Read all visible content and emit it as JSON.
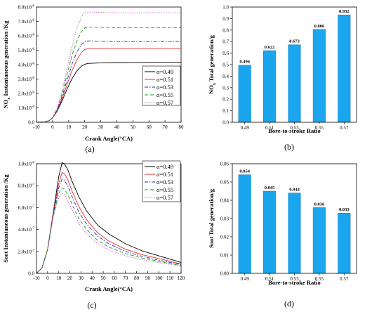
{
  "chart_data": [
    {
      "id": "a",
      "type": "line",
      "panel_label": "(a)",
      "xlabel": "Crank Angle(°CA)",
      "ylabel_main": "NO",
      "ylabel_sub": "x",
      "ylabel_rest": " Instantaneous generation /Kg",
      "xlim": [
        -10,
        80
      ],
      "ylim": [
        0,
        8e-06
      ],
      "xticks": [
        -10,
        0,
        10,
        20,
        30,
        40,
        50,
        60,
        70,
        80
      ],
      "xtick_labels": [
        "-10",
        "0",
        "10",
        "20",
        "30",
        "40",
        "50",
        "60",
        "70",
        "80"
      ],
      "yticks": [
        0,
        1e-06,
        2e-06,
        3e-06,
        4e-06,
        5e-06,
        6e-06,
        7e-06,
        8e-06
      ],
      "ytick_mantissa": [
        "0.0",
        "1.0x10",
        "2.0x10",
        "3.0x10",
        "4.0x10",
        "5.0x10",
        "6.0x10",
        "7.0x10",
        "8.0x10"
      ],
      "ytick_exp": [
        "",
        "-6",
        "-6",
        "-6",
        "-6",
        "-6",
        "-6",
        "-6",
        "-6"
      ],
      "legend_position": "right-middle",
      "series": [
        {
          "name": "α=0.49",
          "color": "#000000",
          "dash": "",
          "x": [
            -10,
            -5,
            -2,
            0,
            3,
            6,
            9,
            12,
            15,
            18,
            20,
            22,
            25,
            30,
            40,
            50,
            60,
            70,
            80
          ],
          "y": [
            0,
            2e-08,
            1.2e-07,
            3e-07,
            8e-07,
            1.5e-06,
            2.3e-06,
            3e-06,
            3.55e-06,
            3.9e-06,
            4.02e-06,
            4.08e-06,
            4.1e-06,
            4.12e-06,
            4.14e-06,
            4.15e-06,
            4.16e-06,
            4.16e-06,
            4.17e-06
          ]
        },
        {
          "name": "α=0.51",
          "color": "#e6302f",
          "dash": "",
          "x": [
            -10,
            -5,
            -2,
            0,
            3,
            6,
            9,
            12,
            15,
            18,
            20,
            22,
            25,
            30,
            40,
            50,
            60,
            70,
            80
          ],
          "y": [
            0,
            2e-08,
            1.2e-07,
            3e-07,
            8.5e-07,
            1.65e-06,
            2.6e-06,
            3.55e-06,
            4.3e-06,
            4.85e-06,
            5.05e-06,
            5.1e-06,
            5.12e-06,
            5.12e-06,
            5.12e-06,
            5.12e-06,
            5.12e-06,
            5.12e-06,
            5.12e-06
          ]
        },
        {
          "name": "α=0.53",
          "color": "#2323b4",
          "dash": "5,2,1.5,2",
          "x": [
            -10,
            -5,
            -2,
            0,
            3,
            6,
            9,
            12,
            15,
            18,
            20,
            22,
            25,
            30,
            40,
            50,
            60,
            70,
            80
          ],
          "y": [
            0,
            2e-08,
            1.2e-07,
            3e-07,
            9e-07,
            1.8e-06,
            2.9e-06,
            4e-06,
            4.85e-06,
            5.4e-06,
            5.6e-06,
            5.65e-06,
            5.65e-06,
            5.62e-06,
            5.6e-06,
            5.6e-06,
            5.6e-06,
            5.6e-06,
            5.6e-06
          ]
        },
        {
          "name": "α=0.55",
          "color": "#15a315",
          "dash": "5,3",
          "x": [
            -10,
            -5,
            -2,
            0,
            3,
            6,
            9,
            12,
            15,
            18,
            20,
            22,
            25,
            30,
            40,
            50,
            60,
            70,
            80
          ],
          "y": [
            0,
            2e-08,
            1.2e-07,
            3.2e-07,
            9.5e-07,
            2e-06,
            3.3e-06,
            4.6e-06,
            5.6e-06,
            6.3e-06,
            6.55e-06,
            6.6e-06,
            6.6e-06,
            6.58e-06,
            6.57e-06,
            6.57e-06,
            6.57e-06,
            6.57e-06,
            6.57e-06
          ]
        },
        {
          "name": "α=0.57",
          "color": "#c03bc0",
          "dash": "1.2,2",
          "x": [
            -10,
            -5,
            -2,
            0,
            3,
            6,
            9,
            12,
            15,
            18,
            20,
            22,
            25,
            30,
            40,
            50,
            60,
            70,
            80
          ],
          "y": [
            0,
            2e-08,
            1.2e-07,
            3.3e-07,
            1e-06,
            2.2e-06,
            3.7e-06,
            5.2e-06,
            6.5e-06,
            7.3e-06,
            7.6e-06,
            7.65e-06,
            7.65e-06,
            7.62e-06,
            7.6e-06,
            7.6e-06,
            7.6e-06,
            7.6e-06,
            7.6e-06
          ]
        }
      ]
    },
    {
      "id": "b",
      "type": "bar",
      "panel_label": "(b)",
      "xlabel": "Bore-to-stroke Ratio",
      "ylabel_main": "NO",
      "ylabel_sub": "x",
      "ylabel_rest": " Total generation/g",
      "ylim": [
        0,
        1.0
      ],
      "yticks": [
        0,
        0.1,
        0.2,
        0.3,
        0.4,
        0.5,
        0.6,
        0.7,
        0.8,
        0.9,
        1.0
      ],
      "ytick_labels": [
        "0.0",
        "0.1",
        "0.2",
        "0.3",
        "0.4",
        "0.5",
        "0.6",
        "0.7",
        "0.8",
        "0.9",
        "1.0"
      ],
      "categories": [
        "0.49",
        "0.51",
        "0.53",
        "0.55",
        "0.57"
      ],
      "values": [
        0.496,
        0.622,
        0.673,
        0.806,
        0.932
      ],
      "value_labels": [
        "0.496",
        "0.622",
        "0.673",
        "0.806",
        "0.932"
      ],
      "bar_color": "#1aa6ef"
    },
    {
      "id": "c",
      "type": "line",
      "panel_label": "(c)",
      "xlabel": "Crank Angle(°CA)",
      "ylabel_main": "Soot Instantaneous generation /Kg",
      "ylabel_sub": "",
      "ylabel_rest": "",
      "xlim": [
        -10,
        120
      ],
      "ylim": [
        0,
        1e-06
      ],
      "xticks": [
        -10,
        0,
        10,
        20,
        30,
        40,
        50,
        60,
        70,
        80,
        90,
        100,
        110,
        120
      ],
      "xtick_labels": [
        "-10",
        "0",
        "10",
        "20",
        "30",
        "40",
        "50",
        "60",
        "70",
        "80",
        "90",
        "100",
        "110",
        "120"
      ],
      "yticks": [
        0,
        2e-07,
        4e-07,
        6e-07,
        8e-07,
        1e-06
      ],
      "ytick_mantissa": [
        "0.0",
        "2.0x10",
        "4.0x10",
        "6.0x10",
        "8.0x10",
        "1.0x10"
      ],
      "ytick_exp": [
        "",
        "-7",
        "-7",
        "-7",
        "-7",
        "-6"
      ],
      "legend_position": "top-right",
      "series": [
        {
          "name": "α=0.49",
          "color": "#000000",
          "dash": "",
          "x": [
            -10,
            -5,
            0,
            5,
            10,
            13,
            15,
            18,
            22,
            28,
            35,
            45,
            55,
            70,
            85,
            100,
            120
          ],
          "y": [
            0,
            5e-08,
            2.2e-07,
            5.5e-07,
            8.8e-07,
            1.01e-06,
            1e-06,
            9.5e-07,
            8.4e-07,
            7e-07,
            5.7e-07,
            4.4e-07,
            3.6e-07,
            2.7e-07,
            2.05e-07,
            1.6e-07,
            1e-07
          ]
        },
        {
          "name": "α=0.51",
          "color": "#e6302f",
          "dash": "",
          "x": [
            -10,
            -5,
            0,
            5,
            10,
            13,
            15,
            18,
            22,
            28,
            35,
            45,
            55,
            70,
            85,
            100,
            120
          ],
          "y": [
            0,
            5e-08,
            2.2e-07,
            5.4e-07,
            8.2e-07,
            9.2e-07,
            9.1e-07,
            8.6e-07,
            7.5e-07,
            6.1e-07,
            4.9e-07,
            3.7e-07,
            2.95e-07,
            2.2e-07,
            1.7e-07,
            1.35e-07,
            8.5e-08
          ]
        },
        {
          "name": "α=0.53",
          "color": "#2323b4",
          "dash": "5,2,1.5,2",
          "x": [
            -10,
            -5,
            0,
            5,
            10,
            13,
            15,
            18,
            22,
            28,
            35,
            45,
            55,
            70,
            85,
            100,
            120
          ],
          "y": [
            0,
            5e-08,
            2.2e-07,
            5.3e-07,
            7.8e-07,
            8.6e-07,
            8.5e-07,
            8e-07,
            7e-07,
            5.6e-07,
            4.5e-07,
            3.4e-07,
            2.7e-07,
            2e-07,
            1.55e-07,
            1.2e-07,
            8e-08
          ]
        },
        {
          "name": "α=0.55",
          "color": "#15a315",
          "dash": "5,3",
          "x": [
            -10,
            -5,
            0,
            5,
            10,
            13,
            15,
            18,
            22,
            28,
            35,
            45,
            55,
            70,
            85,
            100,
            120
          ],
          "y": [
            0,
            5e-08,
            2.2e-07,
            5.2e-07,
            7.3e-07,
            7.8e-07,
            7.7e-07,
            7.2e-07,
            6.3e-07,
            5e-07,
            4e-07,
            3e-07,
            2.4e-07,
            1.8e-07,
            1.4e-07,
            1.1e-07,
            7e-08
          ]
        },
        {
          "name": "α=0.57",
          "color": "#c03bc0",
          "dash": "1.2,2",
          "x": [
            -10,
            -5,
            0,
            5,
            10,
            13,
            15,
            18,
            22,
            28,
            35,
            45,
            55,
            70,
            85,
            100,
            120
          ],
          "y": [
            0,
            5e-08,
            2.2e-07,
            5.1e-07,
            6.9e-07,
            7.3e-07,
            7.2e-07,
            6.7e-07,
            5.8e-07,
            4.6e-07,
            3.6e-07,
            2.7e-07,
            2.15e-07,
            1.6e-07,
            1.25e-07,
            1e-07,
            6.5e-08
          ]
        }
      ]
    },
    {
      "id": "d",
      "type": "bar",
      "panel_label": "(d)",
      "xlabel": "Bore-to-stroke Ratio",
      "ylabel_main": "Soot Total generation/g",
      "ylabel_sub": "",
      "ylabel_rest": "",
      "ylim": [
        0,
        0.06
      ],
      "yticks": [
        0,
        0.01,
        0.02,
        0.03,
        0.04,
        0.05,
        0.06
      ],
      "ytick_labels": [
        "0.00",
        "0.01",
        "0.02",
        "0.03",
        "0.04",
        "0.05",
        "0.06"
      ],
      "categories": [
        "0.49",
        "0.51",
        "0.53",
        "0.55",
        "0.57"
      ],
      "values": [
        0.054,
        0.045,
        0.044,
        0.036,
        0.033
      ],
      "value_labels": [
        "0.054",
        "0.045",
        "0.044",
        "0.036",
        "0.033"
      ],
      "bar_color": "#1aa6ef"
    }
  ]
}
